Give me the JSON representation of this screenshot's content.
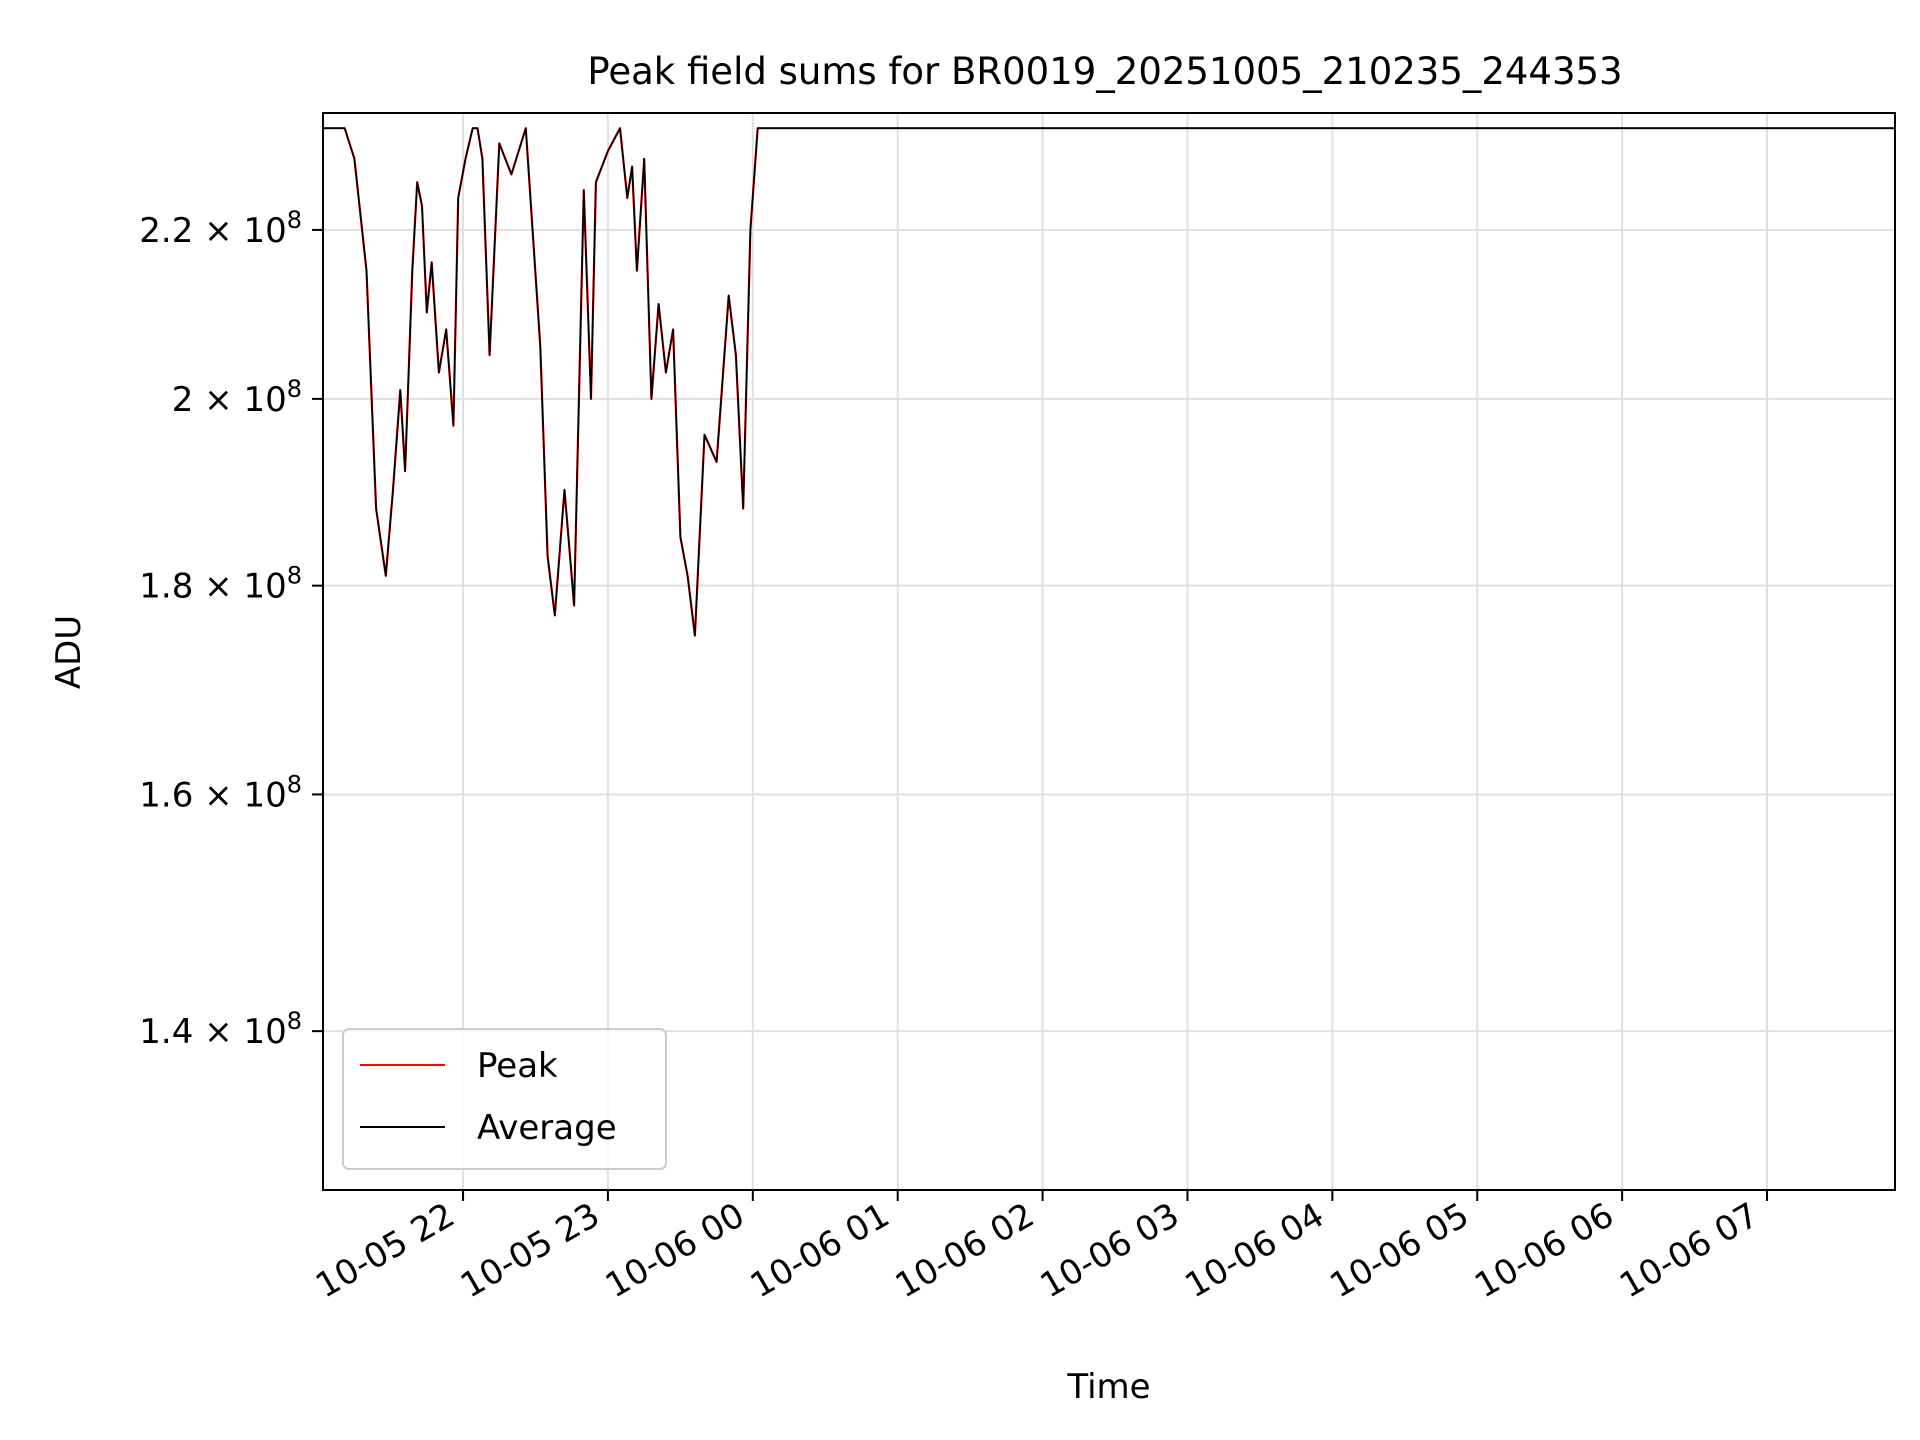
{
  "chart_data": {
    "type": "line",
    "title": "Peak field sums for BR0019_20251005_210235_244353",
    "xlabel": "Time",
    "ylabel": "ADU",
    "yscale": "log",
    "grid": true,
    "legend_position": "lower-left",
    "xlim": [
      "2025-10-05 21:02",
      "2025-10-06 07:53"
    ],
    "ylim": [
      128000000,
      235000000
    ],
    "x_ticks": [
      {
        "value": "2025-10-05 22:00",
        "label": "10-05 22"
      },
      {
        "value": "2025-10-05 23:00",
        "label": "10-05 23"
      },
      {
        "value": "2025-10-06 00:00",
        "label": "10-06 00"
      },
      {
        "value": "2025-10-06 01:00",
        "label": "10-06 01"
      },
      {
        "value": "2025-10-06 02:00",
        "label": "10-06 02"
      },
      {
        "value": "2025-10-06 03:00",
        "label": "10-06 03"
      },
      {
        "value": "2025-10-06 04:00",
        "label": "10-06 04"
      },
      {
        "value": "2025-10-06 05:00",
        "label": "10-06 05"
      },
      {
        "value": "2025-10-06 06:00",
        "label": "10-06 06"
      },
      {
        "value": "2025-10-06 07:00",
        "label": "10-06 07"
      }
    ],
    "y_ticks": [
      {
        "value": 140000000,
        "mantissa": "1.4",
        "exponent": "8"
      },
      {
        "value": 160000000,
        "mantissa": "1.6",
        "exponent": "8"
      },
      {
        "value": 180000000,
        "mantissa": "1.8",
        "exponent": "8"
      },
      {
        "value": 200000000,
        "mantissa": "2",
        "exponent": "8"
      },
      {
        "value": 220000000,
        "mantissa": "2.2",
        "exponent": "8"
      }
    ],
    "x": [
      "2025-10-05 21:02",
      "2025-10-05 21:11",
      "2025-10-05 21:15",
      "2025-10-05 21:20",
      "2025-10-05 21:24",
      "2025-10-05 21:28",
      "2025-10-05 21:31",
      "2025-10-05 21:34",
      "2025-10-05 21:36",
      "2025-10-05 21:39",
      "2025-10-05 21:41",
      "2025-10-05 21:43",
      "2025-10-05 21:45",
      "2025-10-05 21:47",
      "2025-10-05 21:50",
      "2025-10-05 21:53",
      "2025-10-05 21:56",
      "2025-10-05 21:58",
      "2025-10-05 22:01",
      "2025-10-05 22:04",
      "2025-10-05 22:06",
      "2025-10-05 22:08",
      "2025-10-05 22:11",
      "2025-10-05 22:15",
      "2025-10-05 22:20",
      "2025-10-05 22:26",
      "2025-10-05 22:32",
      "2025-10-05 22:35",
      "2025-10-05 22:38",
      "2025-10-05 22:42",
      "2025-10-05 22:46",
      "2025-10-05 22:50",
      "2025-10-05 22:53",
      "2025-10-05 22:55",
      "2025-10-05 23:00",
      "2025-10-05 23:05",
      "2025-10-05 23:08",
      "2025-10-05 23:10",
      "2025-10-05 23:12",
      "2025-10-05 23:15",
      "2025-10-05 23:18",
      "2025-10-05 23:21",
      "2025-10-05 23:24",
      "2025-10-05 23:27",
      "2025-10-05 23:30",
      "2025-10-05 23:33",
      "2025-10-05 23:36",
      "2025-10-05 23:40",
      "2025-10-05 23:45",
      "2025-10-05 23:50",
      "2025-10-05 23:53",
      "2025-10-05 23:56",
      "2025-10-05 23:59",
      "2025-10-06 00:02",
      "2025-10-06 00:06",
      "2025-10-06 00:10",
      "2025-10-06 00:13",
      "2025-10-06 00:16",
      "2025-10-06 00:19",
      "2025-10-06 00:22",
      "2025-10-06 00:26",
      "2025-10-06 00:29",
      "2025-10-06 00:33",
      "2025-10-06 00:36",
      "2025-10-06 00:40",
      "2025-10-06 00:45",
      "2025-10-06 01:00",
      "2025-10-06 01:28",
      "2025-10-06 01:30",
      "2025-10-06 01:33",
      "2025-10-06 01:36",
      "2025-10-06 01:39",
      "2025-10-06 01:45",
      "2025-10-06 02:00",
      "2025-10-06 02:05",
      "2025-10-06 02:09",
      "2025-10-06 02:13",
      "2025-10-06 02:20",
      "2025-10-06 02:35",
      "2025-10-06 02:39",
      "2025-10-06 02:43",
      "2025-10-06 02:50",
      "2025-10-06 03:00",
      "2025-10-06 03:04",
      "2025-10-06 03:08",
      "2025-10-06 03:10",
      "2025-10-06 03:12",
      "2025-10-06 03:15",
      "2025-10-06 03:18",
      "2025-10-06 03:20",
      "2025-10-06 03:24",
      "2025-10-06 03:30",
      "2025-10-06 03:36",
      "2025-10-06 03:41",
      "2025-10-06 03:43",
      "2025-10-06 03:45",
      "2025-10-06 03:48",
      "2025-10-06 03:52",
      "2025-10-06 03:55",
      "2025-10-06 03:58",
      "2025-10-06 04:00",
      "2025-10-06 04:02",
      "2025-10-06 04:05",
      "2025-10-06 04:08",
      "2025-10-06 04:11",
      "2025-10-06 04:13",
      "2025-10-06 04:16",
      "2025-10-06 04:18",
      "2025-10-06 04:20",
      "2025-10-06 04:22",
      "2025-10-06 04:24",
      "2025-10-06 04:27",
      "2025-10-06 04:30",
      "2025-10-06 04:35",
      "2025-10-06 04:45",
      "2025-10-06 05:00",
      "2025-10-06 05:05",
      "2025-10-06 05:10",
      "2025-10-06 05:15",
      "2025-10-06 05:30",
      "2025-10-06 05:35",
      "2025-10-06 05:40",
      "2025-10-06 06:00",
      "2025-10-06 06:05",
      "2025-10-06 06:10",
      "2025-10-06 06:15",
      "2025-10-06 06:20",
      "2025-10-06 06:25",
      "2025-10-06 06:28",
      "2025-10-06 06:30",
      "2025-10-06 06:31",
      "2025-10-06 06:33",
      "2025-10-06 06:35",
      "2025-10-06 06:38",
      "2025-10-06 06:42",
      "2025-10-06 06:46",
      "2025-10-06 06:50",
      "2025-10-06 06:55",
      "2025-10-06 07:00",
      "2025-10-06 07:05",
      "2025-10-06 07:08",
      "2025-10-06 07:10",
      "2025-10-06 07:12",
      "2025-10-06 07:14",
      "2025-10-06 07:16",
      "2025-10-06 07:18",
      "2025-10-06 07:20",
      "2025-10-06 07:24",
      "2025-10-06 07:30",
      "2025-10-06 07:35",
      "2025-10-06 07:40",
      "2025-10-06 07:45",
      "2025-10-06 07:53"
    ],
    "series": [
      {
        "name": "Peak",
        "color": "#ff0000",
        "values": [
          233000000,
          233000000,
          229000000,
          215000000,
          188000000,
          181000000,
          190000000,
          201000000,
          192000000,
          215000000,
          226000000,
          223000000,
          210000000,
          216000000,
          203000000,
          208000000,
          197000000,
          224000000,
          229000000,
          233000000,
          233000000,
          229000000,
          205000000,
          231000000,
          227000000,
          233000000,
          206000000,
          183000000,
          177000000,
          190000000,
          178000000,
          225000000,
          200000000,
          226000000,
          230000000,
          233000000,
          224000000,
          228000000,
          215000000,
          229000000,
          200000000,
          211000000,
          203000000,
          208000000,
          185000000,
          181000000,
          175000000,
          196000000,
          193000000,
          212000000,
          205000000,
          188000000,
          220000000,
          233000000,
          233000000,
          233000000,
          233000000,
          233000000,
          233000000,
          233000000,
          233000000,
          233000000,
          233000000,
          233000000,
          233000000,
          233000000,
          233000000,
          233000000,
          233000000,
          233000000,
          233000000,
          233000000,
          233000000,
          233000000,
          233000000,
          233000000,
          233000000,
          233000000,
          233000000,
          233000000,
          233000000,
          233000000,
          233000000,
          233000000,
          233000000,
          233000000,
          233000000,
          233000000,
          233000000,
          233000000,
          233000000,
          233000000,
          233000000,
          233000000,
          233000000,
          233000000,
          233000000,
          233000000,
          233000000,
          233000000,
          233000000,
          233000000,
          233000000,
          233000000,
          233000000,
          233000000,
          233000000,
          233000000,
          233000000,
          233000000,
          233000000,
          233000000,
          233000000,
          233000000,
          233000000,
          233000000,
          233000000,
          233000000,
          233000000,
          233000000,
          233000000,
          233000000,
          233000000,
          233000000,
          233000000,
          233000000,
          233000000,
          233000000,
          233000000,
          233000000,
          233000000,
          233000000,
          233000000,
          233000000,
          233000000,
          233000000,
          233000000,
          233000000,
          233000000,
          233000000,
          233000000,
          233000000,
          233000000,
          233000000,
          233000000,
          233000000,
          233000000,
          233000000,
          233000000,
          233000000,
          233000000,
          233000000,
          233000000
        ]
      },
      {
        "name": "Average",
        "color": "#000000",
        "values": [
          233000000,
          233000000,
          229000000,
          215000000,
          188000000,
          181000000,
          190000000,
          201000000,
          192000000,
          215000000,
          226000000,
          223000000,
          210000000,
          216000000,
          203000000,
          208000000,
          197000000,
          224000000,
          229000000,
          233000000,
          233000000,
          229000000,
          205000000,
          231000000,
          227000000,
          233000000,
          206000000,
          183000000,
          177000000,
          190000000,
          178000000,
          225000000,
          200000000,
          226000000,
          230000000,
          233000000,
          224000000,
          228000000,
          215000000,
          229000000,
          200000000,
          211000000,
          203000000,
          208000000,
          185000000,
          181000000,
          175000000,
          196000000,
          193000000,
          212000000,
          205000000,
          188000000,
          220000000,
          233000000,
          233000000,
          233000000,
          233000000,
          233000000,
          233000000,
          233000000,
          233000000,
          233000000,
          233000000,
          233000000,
          233000000,
          233000000,
          233000000,
          233000000,
          233000000,
          233000000,
          233000000,
          233000000,
          233000000,
          233000000,
          233000000,
          233000000,
          233000000,
          233000000,
          233000000,
          233000000,
          233000000,
          233000000,
          233000000,
          233000000,
          233000000,
          233000000,
          233000000,
          233000000,
          233000000,
          233000000,
          233000000,
          233000000,
          233000000,
          233000000,
          233000000,
          233000000,
          233000000,
          233000000,
          233000000,
          233000000,
          233000000,
          233000000,
          233000000,
          233000000,
          233000000,
          233000000,
          233000000,
          233000000,
          233000000,
          233000000,
          233000000,
          233000000,
          233000000,
          233000000,
          233000000,
          233000000,
          233000000,
          233000000,
          233000000,
          233000000,
          233000000,
          233000000,
          233000000,
          233000000,
          233000000,
          233000000,
          233000000,
          233000000,
          233000000,
          233000000,
          233000000,
          233000000,
          233000000,
          233000000,
          233000000,
          233000000,
          233000000,
          233000000,
          233000000,
          233000000,
          233000000,
          233000000,
          233000000,
          233000000,
          233000000,
          233000000,
          233000000,
          233000000,
          233000000,
          233000000,
          233000000,
          233000000,
          233000000
        ]
      }
    ]
  }
}
